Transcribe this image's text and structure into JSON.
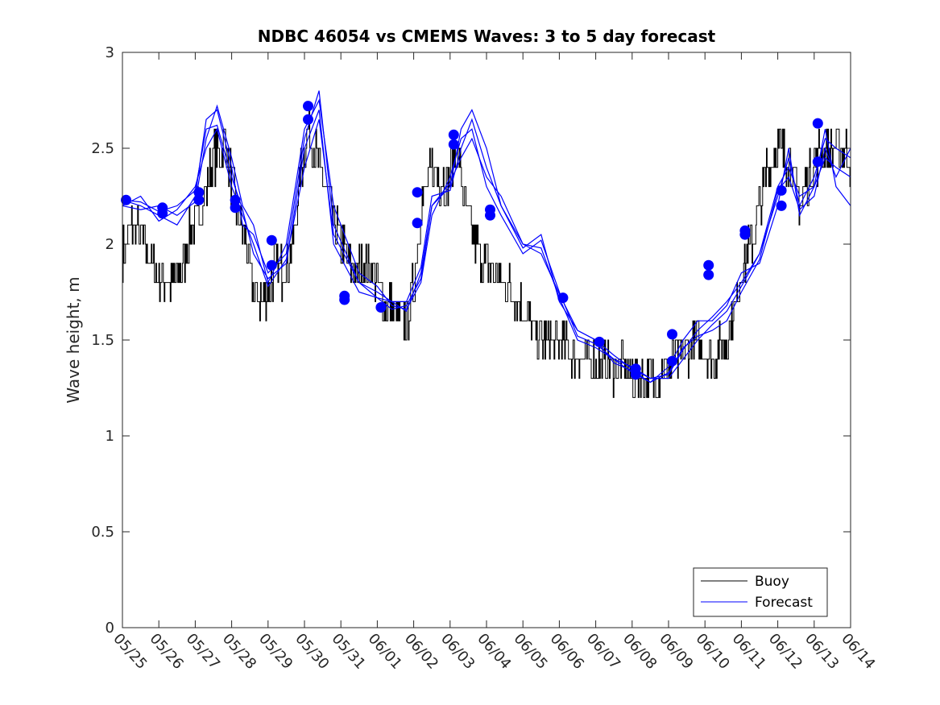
{
  "chart_data": {
    "type": "line",
    "title": "NDBC 46054 vs CMEMS Waves: 3 to 5 day forecast",
    "xlabel": "",
    "ylabel": "Wave height, m",
    "x_tick_labels": [
      "05/25",
      "05/26",
      "05/27",
      "05/28",
      "05/29",
      "05/30",
      "05/31",
      "06/01",
      "06/02",
      "06/03",
      "06/04",
      "06/05",
      "06/06",
      "06/07",
      "06/08",
      "06/09",
      "06/10",
      "06/11",
      "06/12",
      "06/13",
      "06/14"
    ],
    "x_range_days": [
      0,
      20
    ],
    "ylim": [
      0,
      3
    ],
    "y_ticks": [
      0,
      0.5,
      1,
      1.5,
      2,
      2.5,
      3
    ],
    "y_tick_labels": [
      "0",
      "0.5",
      "1",
      "1.5",
      "2",
      "2.5",
      "3"
    ],
    "legend": {
      "position": "bottom-right",
      "entries": [
        {
          "label": "Buoy",
          "color": "#000000"
        },
        {
          "label": "Forecast",
          "color": "#0000ff"
        }
      ]
    },
    "colors": {
      "buoy": "#000000",
      "forecast": "#0000ff"
    },
    "buoy_anchors": {
      "x": [
        0,
        0.3,
        0.6,
        0.9,
        1.3,
        1.6,
        1.9,
        2.2,
        2.5,
        2.8,
        3.1,
        3.4,
        3.6,
        3.9,
        4.2,
        4.4,
        4.7,
        4.9,
        5.1,
        5.4,
        5.7,
        6.0,
        6.4,
        6.8,
        7.2,
        7.5,
        7.8,
        8.0,
        8.2,
        8.5,
        8.9,
        9.2,
        9.4,
        9.6,
        9.9,
        10.2,
        10.6,
        11.0,
        11.4,
        11.8,
        12.2,
        12.6,
        13.0,
        13.4,
        13.8,
        14.2,
        14.6,
        15.0,
        15.4,
        15.8,
        16.2,
        16.6,
        17.0,
        17.4,
        17.7,
        18.0,
        18.3,
        18.6,
        18.9,
        19.2,
        19.5,
        19.7,
        20.0
      ],
      "y": [
        1.95,
        2.1,
        2.0,
        1.85,
        1.8,
        1.85,
        2.1,
        2.2,
        2.45,
        2.55,
        2.2,
        2.0,
        1.75,
        1.7,
        1.9,
        1.85,
        2.0,
        2.4,
        2.6,
        2.4,
        2.2,
        2.0,
        1.85,
        1.9,
        1.7,
        1.65,
        1.6,
        1.8,
        2.2,
        2.4,
        2.3,
        2.5,
        2.2,
        2.05,
        1.9,
        1.85,
        1.8,
        1.65,
        1.5,
        1.5,
        1.45,
        1.4,
        1.4,
        1.35,
        1.35,
        1.3,
        1.3,
        1.35,
        1.45,
        1.5,
        1.4,
        1.5,
        1.85,
        2.1,
        2.4,
        2.5,
        2.45,
        2.2,
        2.4,
        2.5,
        2.5,
        2.5,
        2.45
      ],
      "noise_amplitude_m": 0.12,
      "note_daily_samples": 48
    },
    "series": [
      {
        "name": "Forecast",
        "color": "#0000ff",
        "x": [
          0,
          0.5,
          1.0,
          1.5,
          2.0,
          2.3,
          2.6,
          3.0,
          3.3,
          3.6,
          4.0,
          4.5,
          5.0,
          5.4,
          5.8,
          6.5,
          7.0,
          7.4,
          7.8,
          8.2,
          8.5,
          9.0,
          9.3,
          9.6,
          10.0,
          10.4,
          11.0,
          11.5,
          12.0,
          12.5,
          13.0,
          13.5,
          14.0,
          14.5,
          15.0,
          15.4,
          15.8,
          16.2,
          16.6,
          17.0,
          17.5,
          18.0,
          18.3,
          18.6,
          19.0,
          19.3,
          19.6,
          20.0
        ],
        "y": [
          2.23,
          2.2,
          2.15,
          2.1,
          2.25,
          2.65,
          2.7,
          2.4,
          2.1,
          2.05,
          1.85,
          1.95,
          2.55,
          2.8,
          2.1,
          1.8,
          1.75,
          1.7,
          1.65,
          1.85,
          2.2,
          2.3,
          2.6,
          2.7,
          2.5,
          2.2,
          1.98,
          2.05,
          1.7,
          1.55,
          1.5,
          1.42,
          1.35,
          1.3,
          1.32,
          1.45,
          1.55,
          1.62,
          1.7,
          1.8,
          1.95,
          2.25,
          2.45,
          2.2,
          2.35,
          2.55,
          2.5,
          2.45
        ]
      },
      {
        "name": "",
        "color": "#0000ff",
        "x": [
          0,
          0.5,
          1.0,
          1.5,
          2.0,
          2.3,
          2.6,
          3.0,
          3.3,
          3.6,
          4.0,
          4.5,
          5.0,
          5.4,
          5.8,
          6.5,
          7.0,
          7.4,
          7.8,
          8.2,
          8.5,
          9.0,
          9.3,
          9.6,
          10.0,
          10.4,
          11.0,
          11.5,
          12.0,
          12.5,
          13.0,
          13.5,
          14.0,
          14.5,
          15.0,
          15.4,
          15.8,
          16.2,
          16.6,
          17.0,
          17.5,
          18.0,
          18.3,
          18.6,
          19.0,
          19.3,
          19.6,
          20.0
        ],
        "y": [
          2.2,
          2.18,
          2.2,
          2.15,
          2.22,
          2.55,
          2.72,
          2.45,
          2.2,
          2.1,
          1.8,
          2.0,
          2.6,
          2.75,
          2.2,
          1.85,
          1.78,
          1.68,
          1.66,
          1.8,
          2.15,
          2.35,
          2.55,
          2.6,
          2.3,
          2.15,
          1.95,
          2.02,
          1.75,
          1.52,
          1.48,
          1.4,
          1.33,
          1.28,
          1.36,
          1.5,
          1.6,
          1.6,
          1.68,
          1.85,
          1.9,
          2.2,
          2.5,
          2.15,
          2.3,
          2.45,
          2.4,
          2.35
        ]
      },
      {
        "name": "",
        "color": "#0000ff",
        "x": [
          0,
          0.5,
          1.0,
          1.5,
          2.0,
          2.3,
          2.6,
          3.0,
          3.3,
          3.6,
          4.0,
          4.5,
          5.0,
          5.4,
          5.8,
          6.5,
          7.0,
          7.4,
          7.8,
          8.2,
          8.5,
          9.0,
          9.3,
          9.6,
          10.0,
          10.4,
          11.0,
          11.5,
          12.0,
          12.5,
          13.0,
          13.5,
          14.0,
          14.5,
          15.0,
          15.4,
          15.8,
          16.2,
          16.6,
          17.0,
          17.5,
          18.0,
          18.3,
          18.6,
          19.0,
          19.3,
          19.6,
          20.0
        ],
        "y": [
          2.23,
          2.22,
          2.17,
          2.2,
          2.28,
          2.6,
          2.62,
          2.35,
          2.18,
          1.95,
          1.82,
          1.9,
          2.5,
          2.7,
          2.0,
          1.75,
          1.72,
          1.7,
          1.7,
          1.88,
          2.25,
          2.28,
          2.5,
          2.65,
          2.4,
          2.2,
          2.0,
          1.98,
          1.72,
          1.5,
          1.46,
          1.4,
          1.36,
          1.3,
          1.3,
          1.4,
          1.5,
          1.58,
          1.65,
          1.78,
          1.95,
          2.3,
          2.4,
          2.25,
          2.3,
          2.6,
          2.3,
          2.2
        ]
      },
      {
        "name": "",
        "color": "#0000ff",
        "x": [
          0,
          0.5,
          1.0,
          1.5,
          2.0,
          2.3,
          2.6,
          3.0,
          3.3,
          3.6,
          4.0,
          4.5,
          5.0,
          5.4,
          5.8,
          6.5,
          7.0,
          7.4,
          7.8,
          8.2,
          8.5,
          9.0,
          9.3,
          9.6,
          10.0,
          10.4,
          11.0,
          11.5,
          12.0,
          12.5,
          13.0,
          13.5,
          14.0,
          14.5,
          15.0,
          15.4,
          15.8,
          16.2,
          16.6,
          17.0,
          17.5,
          18.0,
          18.3,
          18.6,
          19.0,
          19.3,
          19.6,
          20.0
        ],
        "y": [
          2.2,
          2.25,
          2.12,
          2.18,
          2.3,
          2.5,
          2.6,
          2.3,
          2.15,
          2.0,
          1.78,
          1.92,
          2.4,
          2.65,
          2.05,
          1.8,
          1.72,
          1.66,
          1.68,
          1.82,
          2.2,
          2.32,
          2.45,
          2.55,
          2.35,
          2.25,
          2.0,
          1.95,
          1.74,
          1.55,
          1.5,
          1.38,
          1.34,
          1.28,
          1.33,
          1.46,
          1.52,
          1.55,
          1.6,
          1.75,
          1.92,
          2.28,
          2.35,
          2.18,
          2.25,
          2.5,
          2.35,
          2.5
        ]
      }
    ],
    "markers": {
      "x": [
        0.1,
        1.1,
        1.1,
        2.1,
        2.1,
        3.1,
        3.1,
        4.1,
        4.1,
        5.1,
        5.1,
        6.1,
        6.1,
        7.1,
        8.1,
        8.1,
        9.1,
        9.1,
        10.1,
        10.1,
        12.1,
        13.1,
        14.1,
        14.1,
        15.1,
        15.1,
        16.1,
        16.1,
        17.1,
        17.1,
        18.1,
        18.1,
        19.1,
        19.1
      ],
      "y": [
        2.23,
        2.19,
        2.16,
        2.27,
        2.23,
        2.23,
        2.19,
        2.02,
        1.89,
        2.72,
        2.65,
        1.73,
        1.71,
        1.67,
        2.27,
        2.11,
        2.57,
        2.52,
        2.18,
        2.15,
        1.72,
        1.49,
        1.35,
        1.32,
        1.53,
        1.39,
        1.89,
        1.84,
        2.07,
        2.05,
        2.28,
        2.2,
        2.63,
        2.43
      ]
    }
  }
}
